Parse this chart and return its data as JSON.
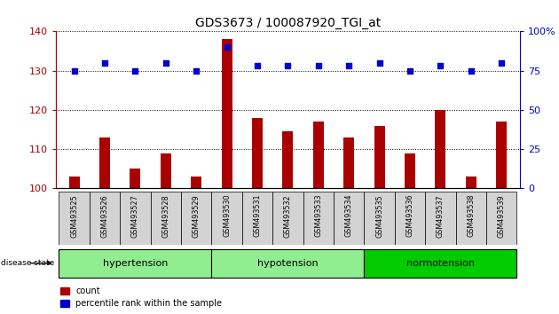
{
  "title": "GDS3673 / 100087920_TGI_at",
  "samples": [
    "GSM493525",
    "GSM493526",
    "GSM493527",
    "GSM493528",
    "GSM493529",
    "GSM493530",
    "GSM493531",
    "GSM493532",
    "GSM493533",
    "GSM493534",
    "GSM493535",
    "GSM493536",
    "GSM493537",
    "GSM493538",
    "GSM493539"
  ],
  "count_values": [
    103,
    113,
    105,
    109,
    103,
    138,
    118,
    114.5,
    117,
    113,
    116,
    109,
    120,
    103,
    117
  ],
  "percentile_values": [
    75,
    80,
    75,
    80,
    75,
    90,
    78,
    78,
    78,
    78,
    80,
    75,
    78,
    75,
    80
  ],
  "group_defs": [
    {
      "label": "hypertension",
      "start": 0,
      "end": 5,
      "color": "#90EE90"
    },
    {
      "label": "hypotension",
      "start": 5,
      "end": 10,
      "color": "#90EE90"
    },
    {
      "label": "normotension",
      "start": 10,
      "end": 15,
      "color": "#00CC00"
    }
  ],
  "ylim_left": [
    100,
    140
  ],
  "ylim_right": [
    0,
    100
  ],
  "yticks_left": [
    100,
    110,
    120,
    130,
    140
  ],
  "yticks_right": [
    0,
    25,
    50,
    75,
    100
  ],
  "bar_color": "#AA0000",
  "dot_color": "#0000CC",
  "plot_bg": "#ffffff",
  "tick_bg": "#D3D3D3",
  "grid_color": "#000000",
  "bar_width": 0.35
}
